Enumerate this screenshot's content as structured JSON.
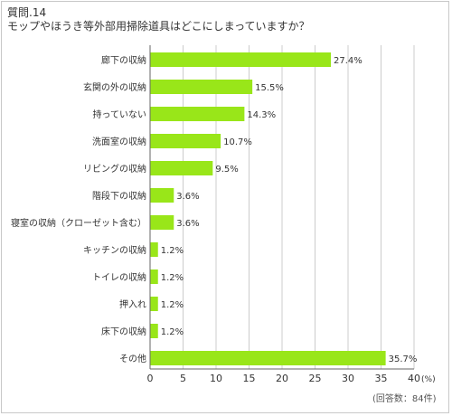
{
  "question": {
    "number": "質問.14",
    "text": "モップやほうき等外部用掃除道具はどこにしまっていますか？"
  },
  "note": "(回答数：84件)",
  "colors": {
    "bar": "#99e619",
    "grid": "#cccccc",
    "axis": "#666666",
    "text": "#333333"
  },
  "chart_data": {
    "type": "bar",
    "orientation": "horizontal",
    "title": "",
    "xlabel": "",
    "ylabel": "",
    "unit": "(%)",
    "xlim": [
      0,
      40
    ],
    "xticks": [
      0,
      5,
      10,
      15,
      20,
      25,
      30,
      35,
      40
    ],
    "grid": true,
    "categories": [
      "廊下の収納",
      "玄関の外の収納",
      "持っていない",
      "洗面室の収納",
      "リビングの収納",
      "階段下の収納",
      "寝室の収納（クローゼット含む）",
      "キッチンの収納",
      "トイレの収納",
      "押入れ",
      "床下の収納",
      "その他"
    ],
    "values": [
      27.4,
      15.5,
      14.3,
      10.7,
      9.5,
      3.6,
      3.6,
      1.2,
      1.2,
      1.2,
      1.2,
      35.7
    ],
    "value_labels": [
      "27.4%",
      "15.5%",
      "14.3%",
      "10.7%",
      "9.5%",
      "3.6%",
      "3.6%",
      "1.2%",
      "1.2%",
      "1.2%",
      "1.2%",
      "35.7%"
    ]
  }
}
